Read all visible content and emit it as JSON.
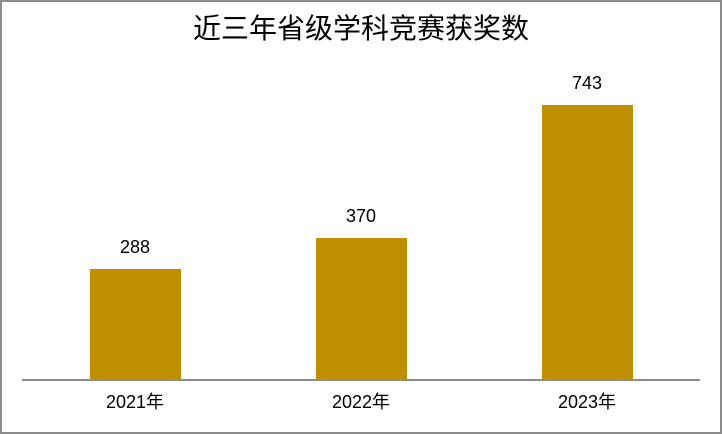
{
  "chart_data": {
    "type": "bar",
    "title": "近三年省级学科竞赛获奖数",
    "categories": [
      "2021年",
      "2022年",
      "2023年"
    ],
    "values": [
      288,
      370,
      743
    ],
    "xlabel": "",
    "ylabel": "",
    "ylim": [
      0,
      800
    ],
    "grid": false,
    "legend": false,
    "data_labels_shown": true,
    "colors": {
      "bar": "#bf8f00",
      "axis_line": "#8c8c8c",
      "frame_border": "#8c8c8c",
      "text": "#000000",
      "background": "#ffffff"
    }
  }
}
